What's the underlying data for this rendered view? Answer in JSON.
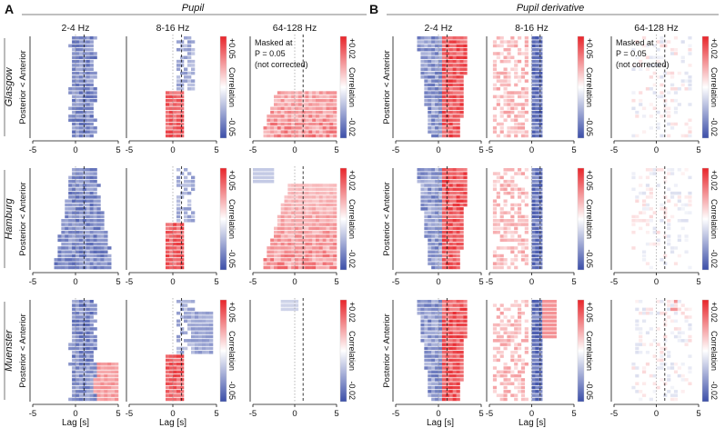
{
  "panel_letters": [
    "A",
    "B"
  ],
  "group_titles": [
    "Pupil",
    "Pupil derivative"
  ],
  "freq_labels": [
    "2-4 Hz",
    "8-16 Hz",
    "64-128 Hz"
  ],
  "site_labels": [
    "Glasgow",
    "Hamburg",
    "Muenster"
  ],
  "y_axis_label": "Posterior < Anterior",
  "x_axis_label": "Lag [s]",
  "mask_note": [
    "Masked at",
    "P = 0.05",
    "(not corrected)"
  ],
  "colorbar": {
    "label": "Correlation",
    "scale_left": [
      "+0.05",
      "-0.05"
    ],
    "scale_right": [
      "+0.02",
      "-0.02"
    ]
  },
  "colors": {
    "positive": "#e8242a",
    "negative": "#3b4ea8",
    "neutral": "#ffffff",
    "axis": "#111111"
  },
  "chart_data": {
    "type": "heatmap",
    "x_ticks": [
      -5,
      0,
      5
    ],
    "xlim": [
      -5,
      5
    ],
    "reference_lines": [
      0,
      1
    ],
    "rows": [
      "Glasgow",
      "Hamburg",
      "Muenster"
    ],
    "columns": [
      "Pupil 2-4 Hz",
      "Pupil 8-16 Hz",
      "Pupil 64-128 Hz",
      "Pupil derivative 2-4 Hz",
      "Pupil derivative 8-16 Hz",
      "Pupil derivative 64-128 Hz"
    ],
    "color_range": {
      "Pupil 2-4 Hz": [
        -0.05,
        0.05
      ],
      "Pupil 8-16 Hz": [
        -0.05,
        0.05
      ],
      "Pupil 64-128 Hz": [
        -0.02,
        0.02
      ],
      "Pupil derivative 2-4 Hz": [
        -0.05,
        0.05
      ],
      "Pupil derivative 8-16 Hz": [
        -0.05,
        0.05
      ],
      "Pupil derivative 64-128 Hz": [
        -0.02,
        0.02
      ]
    }
  }
}
